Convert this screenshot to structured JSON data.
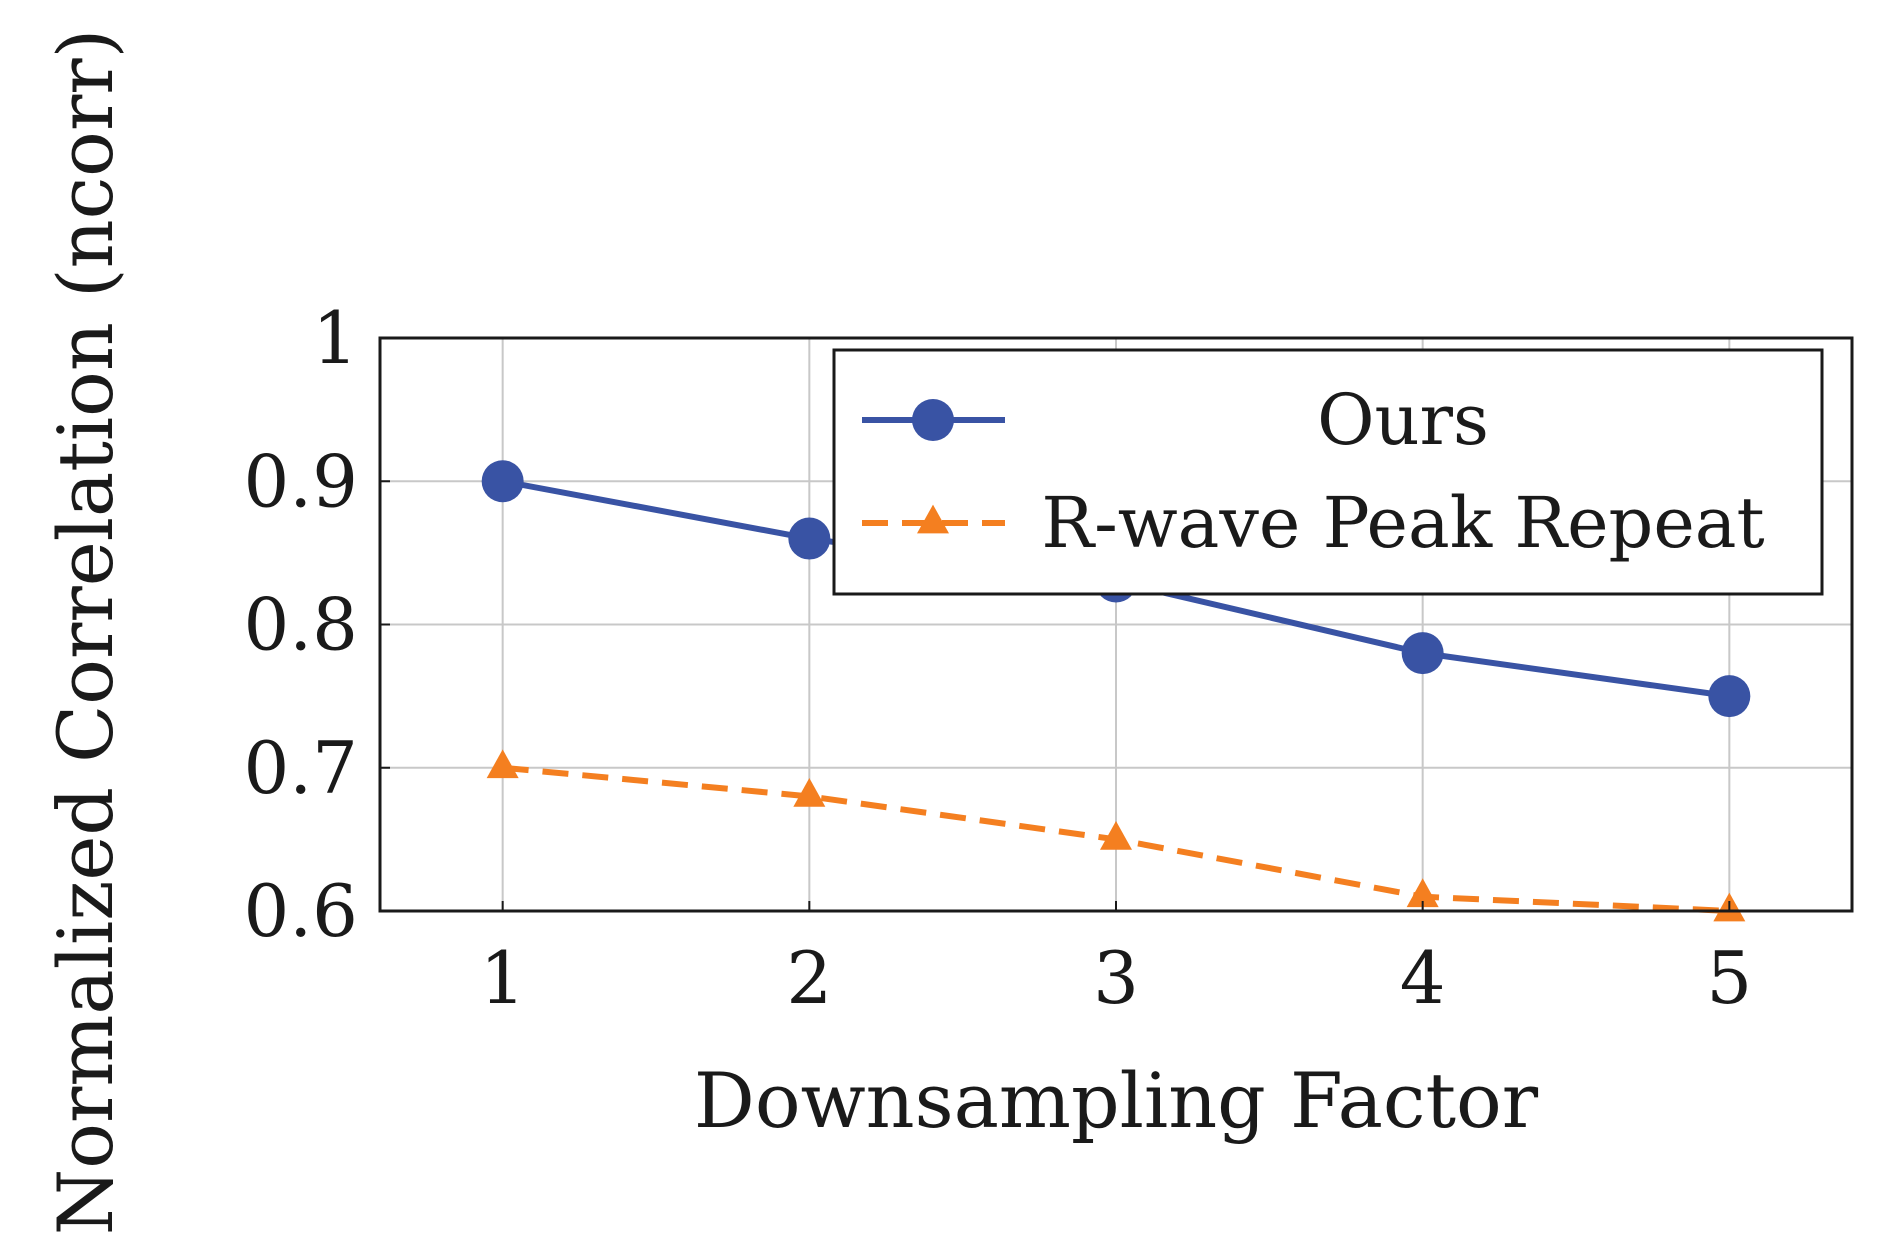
{
  "chart_data": {
    "type": "line",
    "title": "",
    "xlabel": "Downsampling Factor",
    "ylabel": "Normalized Correlation (ncorr)",
    "x": [
      1,
      2,
      3,
      4,
      5
    ],
    "x_tick_labels": [
      "1",
      "2",
      "3",
      "4",
      "5"
    ],
    "xlim": [
      0.6,
      5.4
    ],
    "ylim": [
      0.6,
      1.0
    ],
    "y_ticks": [
      0.6,
      0.7,
      0.8,
      0.9,
      1.0
    ],
    "y_tick_labels": [
      "0.6",
      "0.7",
      "0.8",
      "0.9",
      "1"
    ],
    "grid": true,
    "legend_position": "top-right",
    "series": [
      {
        "name": "Ours",
        "values": [
          0.9,
          0.86,
          0.83,
          0.78,
          0.75
        ],
        "color": "#3953a4",
        "marker": "circle",
        "line_style": "solid"
      },
      {
        "name": "R-wave Peak Repeat",
        "values": [
          0.7,
          0.68,
          0.65,
          0.61,
          0.6
        ],
        "color": "#f47f20",
        "marker": "triangle",
        "line_style": "dashed"
      }
    ]
  }
}
